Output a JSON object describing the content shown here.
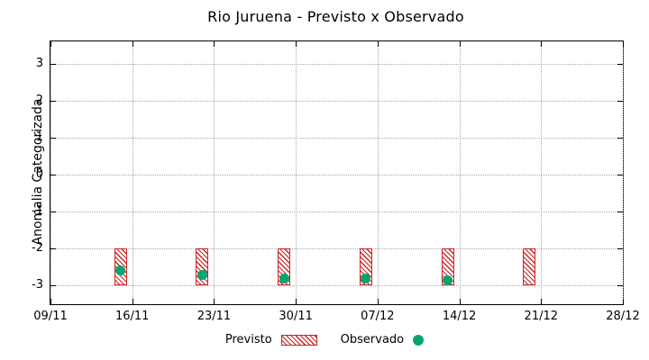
{
  "chart_data": {
    "type": "bar",
    "title": "Rio Juruena - Previsto x Observado",
    "xlabel": "",
    "ylabel": "Anomalia Categorizada",
    "ylim": [
      -3.5,
      3.6
    ],
    "yticks": [
      -3,
      -2,
      -1,
      0,
      1,
      2,
      3
    ],
    "x_tick_labels": [
      "09/11",
      "16/11",
      "23/11",
      "30/11",
      "07/12",
      "14/12",
      "21/12",
      "28/12"
    ],
    "x_tick_days": [
      0,
      7,
      14,
      21,
      28,
      35,
      42,
      49
    ],
    "x_total_days": 49,
    "grid": true,
    "legend_position": "bottom",
    "series": [
      {
        "name": "Previsto",
        "marker": "hatched-bar",
        "color": "#cc2222",
        "x_days": [
          6,
          13,
          20,
          27,
          34,
          41
        ],
        "x_labels": [
          "15/11",
          "22/11",
          "29/11",
          "06/12",
          "13/12",
          "20/12"
        ],
        "y_low": [
          -3,
          -3,
          -3,
          -3,
          -3,
          -3
        ],
        "y_high": [
          -2,
          -2,
          -2,
          -2,
          -2,
          -2
        ]
      },
      {
        "name": "Observado",
        "marker": "filled-circle",
        "color": "#00a572",
        "x_days": [
          6,
          13,
          20,
          27,
          34
        ],
        "x_labels": [
          "15/11",
          "22/11",
          "29/11",
          "06/12",
          "13/12"
        ],
        "values": [
          -2.6,
          -2.7,
          -2.8,
          -2.8,
          -2.85
        ]
      }
    ]
  }
}
